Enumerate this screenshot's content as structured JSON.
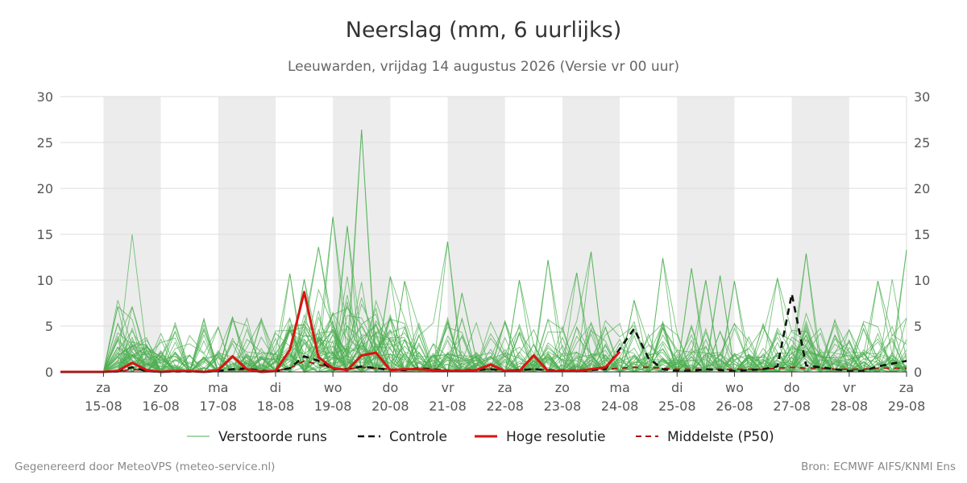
{
  "header": {
    "title": "Neerslag (mm, 6 uurlijks)",
    "subtitle": "Leeuwarden, vrijdag 14 augustus 2026 (Versie vr 00 uur)"
  },
  "footer": {
    "generated": "Gegenereerd door MeteoVPS (meteo-service.nl)",
    "source": "Bron: ECMWF AIFS/KNMI Ens"
  },
  "colors": {
    "ensemble": "#4caf50",
    "control": "#111111",
    "highres": "#dd1111",
    "median": "#aa1111",
    "weekend_band": "#ececec",
    "grid": "#dddddd"
  },
  "chart_data": {
    "type": "line",
    "title": "Neerslag (mm, 6 uurlijks)",
    "subtitle": "Leeuwarden, vrijdag 14 augustus 2026 (Versie vr 00 uur)",
    "x_unit": "days since 2026-08-14 00:00 (6-hourly steps)",
    "xlim": [
      -0.75,
      14.0
    ],
    "ylim": [
      0,
      30
    ],
    "y_ticks": [
      0,
      5,
      10,
      15,
      20,
      25,
      30
    ],
    "grid": true,
    "legend_position": "bottom",
    "x_tick_labels": [
      {
        "x": 0.0,
        "day": "za",
        "date": "15-08"
      },
      {
        "x": 1.0,
        "day": "zo",
        "date": "16-08"
      },
      {
        "x": 2.0,
        "day": "ma",
        "date": "17-08"
      },
      {
        "x": 3.0,
        "day": "di",
        "date": "18-08"
      },
      {
        "x": 4.0,
        "day": "wo",
        "date": "19-08"
      },
      {
        "x": 5.0,
        "day": "do",
        "date": "20-08"
      },
      {
        "x": 6.0,
        "day": "vr",
        "date": "21-08"
      },
      {
        "x": 7.0,
        "day": "za",
        "date": "22-08"
      },
      {
        "x": 8.0,
        "day": "zo",
        "date": "23-08"
      },
      {
        "x": 9.0,
        "day": "ma",
        "date": "24-08"
      },
      {
        "x": 10.0,
        "day": "di",
        "date": "25-08"
      },
      {
        "x": 11.0,
        "day": "wo",
        "date": "26-08"
      },
      {
        "x": 12.0,
        "day": "do",
        "date": "27-08"
      },
      {
        "x": 13.0,
        "day": "vr",
        "date": "28-08"
      },
      {
        "x": 14.0,
        "day": "za",
        "date": "29-08"
      }
    ],
    "shaded_bands": [
      [
        0,
        1
      ],
      [
        2,
        3
      ],
      [
        4,
        5
      ],
      [
        6,
        7
      ],
      [
        8,
        9
      ],
      [
        10,
        11
      ],
      [
        12,
        13
      ]
    ],
    "legend": [
      {
        "label": "Verstoorde runs",
        "style": "thin-green"
      },
      {
        "label": "Controle",
        "style": "black-dashed"
      },
      {
        "label": "Hoge resolutie",
        "style": "red-solid"
      },
      {
        "label": "Middelste (P50)",
        "style": "darkred-dashed"
      }
    ],
    "series": [
      {
        "name": "Hoge resolutie",
        "x": [
          -0.75,
          -0.5,
          -0.25,
          0,
          0.25,
          0.5,
          0.75,
          1,
          1.25,
          1.5,
          1.75,
          2,
          2.25,
          2.5,
          2.75,
          3,
          3.25,
          3.5,
          3.75,
          4,
          4.25,
          4.5,
          4.75,
          5,
          5.25,
          5.5,
          5.75,
          6,
          6.25,
          6.5,
          6.75,
          7,
          7.25,
          7.5,
          7.75,
          8,
          8.25,
          8.5,
          8.75,
          9
        ],
        "values": [
          0,
          0,
          0,
          0,
          0.1,
          1.0,
          0.2,
          0,
          0.1,
          0.1,
          0,
          0.2,
          1.7,
          0.3,
          0,
          0.1,
          2.4,
          8.7,
          1.6,
          0.4,
          0.2,
          1.8,
          2.1,
          0.2,
          0.3,
          0.3,
          0.2,
          0.1,
          0.1,
          0.2,
          0.8,
          0.1,
          0.1,
          1.8,
          0.1,
          0.1,
          0.1,
          0.3,
          0.5,
          2.2
        ]
      },
      {
        "name": "Controle",
        "x": [
          -0.75,
          -0.5,
          -0.25,
          0,
          0.25,
          0.5,
          0.75,
          1,
          1.25,
          1.5,
          1.75,
          2,
          2.25,
          2.5,
          2.75,
          3,
          3.25,
          3.5,
          3.75,
          4,
          4.25,
          4.5,
          4.75,
          5,
          5.25,
          5.5,
          5.75,
          6,
          6.25,
          6.5,
          6.75,
          7,
          7.25,
          7.5,
          7.75,
          8,
          8.25,
          8.5,
          8.75,
          9,
          9.25,
          9.5,
          9.75,
          10,
          10.25,
          10.5,
          10.75,
          11,
          11.25,
          11.5,
          11.75,
          12,
          12.25,
          12.5,
          12.75,
          13,
          13.25,
          13.5,
          13.75,
          14
        ],
        "values": [
          0,
          0,
          0,
          0,
          0.1,
          0.5,
          0.1,
          0,
          0.1,
          0.1,
          0,
          0.1,
          0.3,
          0.4,
          0.1,
          0.1,
          0.4,
          1.7,
          1.2,
          0.3,
          0.3,
          0.6,
          0.4,
          0.2,
          0.2,
          0.4,
          0.3,
          0.1,
          0.1,
          0.2,
          0.3,
          0.1,
          0.2,
          0.3,
          0.2,
          0.1,
          0.1,
          0.2,
          0.3,
          2.5,
          4.7,
          1.5,
          0.3,
          0.1,
          0.1,
          0.3,
          0.2,
          0.1,
          0.2,
          0.3,
          0.6,
          8.5,
          0.7,
          0.5,
          0.3,
          0.1,
          0.1,
          0.6,
          0.9,
          1.2
        ]
      },
      {
        "name": "Middelste (P50)",
        "x": [
          -0.75,
          -0.5,
          -0.25,
          0,
          0.25,
          0.5,
          0.75,
          1,
          1.25,
          1.5,
          1.75,
          2,
          2.25,
          2.5,
          2.75,
          3,
          3.25,
          3.5,
          3.75,
          4,
          4.25,
          4.5,
          4.75,
          5,
          5.25,
          5.5,
          5.75,
          6,
          6.25,
          6.5,
          6.75,
          7,
          7.25,
          7.5,
          7.75,
          8,
          8.25,
          8.5,
          8.75,
          9,
          9.25,
          9.5,
          9.75,
          10,
          10.25,
          10.5,
          10.75,
          11,
          11.25,
          11.5,
          11.75,
          12,
          12.25,
          12.5,
          12.75,
          13,
          13.25,
          13.5,
          13.75,
          14
        ],
        "values": [
          0,
          0,
          0,
          0,
          0,
          0.3,
          0.1,
          0,
          0,
          0,
          0,
          0.1,
          0.3,
          0.2,
          0.1,
          0.1,
          0.4,
          1.2,
          0.8,
          0.4,
          0.3,
          0.5,
          0.4,
          0.3,
          0.3,
          0.4,
          0.3,
          0.2,
          0.2,
          0.3,
          0.3,
          0.2,
          0.2,
          0.3,
          0.2,
          0.2,
          0.2,
          0.3,
          0.3,
          0.4,
          0.5,
          0.5,
          0.4,
          0.3,
          0.3,
          0.3,
          0.3,
          0.3,
          0.3,
          0.3,
          0.4,
          0.5,
          0.4,
          0.4,
          0.3,
          0.3,
          0.3,
          0.4,
          0.4,
          0.4
        ]
      }
    ],
    "ensemble_members": 50,
    "ensemble_peaks": [
      {
        "x": 0.5,
        "value": 15.0
      },
      {
        "x": 0.5,
        "value": 7.1
      },
      {
        "x": 3.25,
        "value": 10.7
      },
      {
        "x": 3.5,
        "value": 10.1
      },
      {
        "x": 3.75,
        "value": 13.6
      },
      {
        "x": 4.0,
        "value": 16.9
      },
      {
        "x": 4.25,
        "value": 15.9
      },
      {
        "x": 4.5,
        "value": 26.4
      },
      {
        "x": 5.0,
        "value": 10.4
      },
      {
        "x": 5.25,
        "value": 9.9
      },
      {
        "x": 6.0,
        "value": 14.2
      },
      {
        "x": 6.25,
        "value": 8.6
      },
      {
        "x": 7.25,
        "value": 10.0
      },
      {
        "x": 7.75,
        "value": 12.2
      },
      {
        "x": 8.25,
        "value": 10.8
      },
      {
        "x": 8.5,
        "value": 13.1
      },
      {
        "x": 9.25,
        "value": 7.8
      },
      {
        "x": 9.75,
        "value": 12.4
      },
      {
        "x": 10.25,
        "value": 11.3
      },
      {
        "x": 10.5,
        "value": 10.0
      },
      {
        "x": 10.75,
        "value": 10.5
      },
      {
        "x": 11.0,
        "value": 9.9
      },
      {
        "x": 11.75,
        "value": 10.2
      },
      {
        "x": 12.25,
        "value": 12.9
      },
      {
        "x": 13.5,
        "value": 9.9
      },
      {
        "x": 13.75,
        "value": 10.1
      },
      {
        "x": 14.0,
        "value": 13.3
      }
    ]
  }
}
